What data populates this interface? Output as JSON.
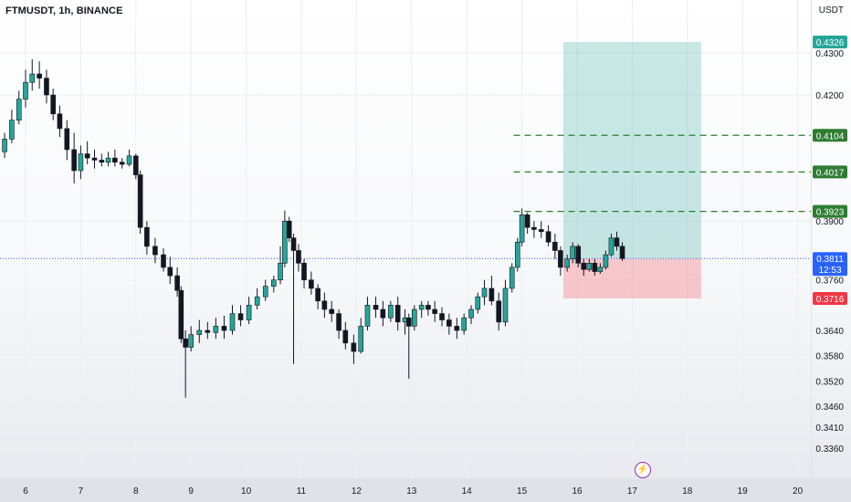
{
  "title": "FTMUSDT, 1h, BINANCE",
  "currency": "USDT",
  "event_icon": "lightning-bolt-icon",
  "chart_data": {
    "type": "candlestick",
    "symbol": "FTMUSDT",
    "interval": "1h",
    "exchange": "BINANCE",
    "ylim": [
      0.335,
      0.4365
    ],
    "xlim": [
      5.6,
      20.5
    ],
    "y_ticks": [
      "0.4300",
      "0.4200",
      "0.3900",
      "0.3760",
      "0.3640",
      "0.3580",
      "0.3520",
      "0.3460",
      "0.3410",
      "0.3360"
    ],
    "x_ticks": [
      "6",
      "7",
      "8",
      "9",
      "10",
      "11",
      "12",
      "13",
      "14",
      "15",
      "16",
      "17",
      "18",
      "19",
      "20"
    ],
    "ohlc": [
      [
        5.62,
        0.4065,
        0.411,
        0.405,
        0.4095
      ],
      [
        5.75,
        0.4095,
        0.4165,
        0.4085,
        0.414
      ],
      [
        5.88,
        0.414,
        0.421,
        0.413,
        0.419
      ],
      [
        6.0,
        0.419,
        0.426,
        0.417,
        0.423
      ],
      [
        6.12,
        0.423,
        0.4285,
        0.421,
        0.425
      ],
      [
        6.25,
        0.425,
        0.428,
        0.4215,
        0.424
      ],
      [
        6.38,
        0.424,
        0.426,
        0.418,
        0.42
      ],
      [
        6.5,
        0.42,
        0.4215,
        0.414,
        0.4155
      ],
      [
        6.62,
        0.4155,
        0.4175,
        0.41,
        0.412
      ],
      [
        6.75,
        0.412,
        0.414,
        0.4045,
        0.407
      ],
      [
        6.88,
        0.407,
        0.411,
        0.399,
        0.402
      ],
      [
        7.0,
        0.402,
        0.408,
        0.4,
        0.406
      ],
      [
        7.12,
        0.406,
        0.409,
        0.4035,
        0.405
      ],
      [
        7.25,
        0.405,
        0.407,
        0.4025,
        0.4045
      ],
      [
        7.38,
        0.4045,
        0.406,
        0.403,
        0.404
      ],
      [
        7.5,
        0.404,
        0.4065,
        0.403,
        0.405
      ],
      [
        7.62,
        0.405,
        0.407,
        0.403,
        0.404
      ],
      [
        7.75,
        0.404,
        0.405,
        0.4025,
        0.4035
      ],
      [
        7.88,
        0.4035,
        0.407,
        0.403,
        0.4055
      ],
      [
        8.0,
        0.4055,
        0.406,
        0.4,
        0.401
      ],
      [
        8.08,
        0.401,
        0.402,
        0.387,
        0.3885
      ],
      [
        8.2,
        0.3885,
        0.39,
        0.382,
        0.384
      ],
      [
        8.35,
        0.384,
        0.386,
        0.38,
        0.382
      ],
      [
        8.5,
        0.382,
        0.3835,
        0.378,
        0.379
      ],
      [
        8.62,
        0.379,
        0.3815,
        0.375,
        0.377
      ],
      [
        8.75,
        0.377,
        0.379,
        0.372,
        0.3735
      ],
      [
        8.82,
        0.3735,
        0.3745,
        0.361,
        0.362
      ],
      [
        8.9,
        0.362,
        0.364,
        0.348,
        0.36
      ],
      [
        9.0,
        0.36,
        0.365,
        0.359,
        0.363
      ],
      [
        9.15,
        0.363,
        0.3665,
        0.361,
        0.364
      ],
      [
        9.3,
        0.364,
        0.366,
        0.362,
        0.3635
      ],
      [
        9.45,
        0.3635,
        0.367,
        0.362,
        0.365
      ],
      [
        9.6,
        0.365,
        0.3675,
        0.362,
        0.364
      ],
      [
        9.75,
        0.364,
        0.37,
        0.363,
        0.368
      ],
      [
        9.9,
        0.368,
        0.37,
        0.365,
        0.3665
      ],
      [
        10.05,
        0.3665,
        0.372,
        0.3655,
        0.37
      ],
      [
        10.2,
        0.37,
        0.374,
        0.369,
        0.372
      ],
      [
        10.35,
        0.372,
        0.376,
        0.371,
        0.3745
      ],
      [
        10.5,
        0.3745,
        0.377,
        0.373,
        0.376
      ],
      [
        10.62,
        0.376,
        0.384,
        0.375,
        0.38
      ],
      [
        10.7,
        0.38,
        0.3925,
        0.379,
        0.39
      ],
      [
        10.78,
        0.39,
        0.391,
        0.385,
        0.386
      ],
      [
        10.86,
        0.386,
        0.387,
        0.356,
        0.383
      ],
      [
        10.95,
        0.383,
        0.3845,
        0.378,
        0.38
      ],
      [
        11.05,
        0.38,
        0.381,
        0.374,
        0.376
      ],
      [
        11.18,
        0.376,
        0.378,
        0.3725,
        0.374
      ],
      [
        11.3,
        0.374,
        0.375,
        0.369,
        0.371
      ],
      [
        11.42,
        0.371,
        0.373,
        0.367,
        0.369
      ],
      [
        11.55,
        0.369,
        0.371,
        0.366,
        0.368
      ],
      [
        11.68,
        0.368,
        0.369,
        0.362,
        0.364
      ],
      [
        11.8,
        0.364,
        0.366,
        0.3595,
        0.361
      ],
      [
        11.95,
        0.361,
        0.363,
        0.356,
        0.359
      ],
      [
        12.08,
        0.359,
        0.367,
        0.3585,
        0.365
      ],
      [
        12.2,
        0.365,
        0.372,
        0.364,
        0.37
      ],
      [
        12.35,
        0.37,
        0.372,
        0.367,
        0.369
      ],
      [
        12.48,
        0.369,
        0.371,
        0.365,
        0.367
      ],
      [
        12.62,
        0.367,
        0.371,
        0.366,
        0.37
      ],
      [
        12.75,
        0.37,
        0.372,
        0.364,
        0.366
      ],
      [
        12.88,
        0.366,
        0.369,
        0.363,
        0.367
      ],
      [
        12.95,
        0.367,
        0.368,
        0.3525,
        0.365
      ],
      [
        13.05,
        0.365,
        0.37,
        0.364,
        0.369
      ],
      [
        13.18,
        0.369,
        0.371,
        0.367,
        0.37
      ],
      [
        13.3,
        0.37,
        0.371,
        0.3675,
        0.369
      ],
      [
        13.42,
        0.369,
        0.371,
        0.366,
        0.368
      ],
      [
        13.55,
        0.368,
        0.3695,
        0.365,
        0.3665
      ],
      [
        13.68,
        0.3665,
        0.368,
        0.363,
        0.365
      ],
      [
        13.82,
        0.365,
        0.367,
        0.362,
        0.364
      ],
      [
        13.95,
        0.364,
        0.368,
        0.363,
        0.367
      ],
      [
        14.08,
        0.367,
        0.37,
        0.3655,
        0.369
      ],
      [
        14.2,
        0.369,
        0.373,
        0.368,
        0.372
      ],
      [
        14.32,
        0.372,
        0.376,
        0.37,
        0.374
      ],
      [
        14.45,
        0.374,
        0.377,
        0.37,
        0.371
      ],
      [
        14.58,
        0.371,
        0.373,
        0.364,
        0.366
      ],
      [
        14.7,
        0.366,
        0.376,
        0.365,
        0.374
      ],
      [
        14.82,
        0.374,
        0.38,
        0.373,
        0.379
      ],
      [
        14.92,
        0.379,
        0.386,
        0.378,
        0.385
      ],
      [
        15.0,
        0.385,
        0.393,
        0.384,
        0.3915
      ],
      [
        15.1,
        0.3915,
        0.392,
        0.387,
        0.3885
      ],
      [
        15.22,
        0.3885,
        0.39,
        0.386,
        0.388
      ],
      [
        15.35,
        0.388,
        0.39,
        0.386,
        0.3875
      ],
      [
        15.48,
        0.3875,
        0.389,
        0.384,
        0.385
      ],
      [
        15.6,
        0.385,
        0.387,
        0.381,
        0.383
      ],
      [
        15.7,
        0.383,
        0.384,
        0.377,
        0.379
      ],
      [
        15.82,
        0.379,
        0.382,
        0.378,
        0.381
      ],
      [
        15.92,
        0.381,
        0.385,
        0.38,
        0.384
      ],
      [
        16.02,
        0.384,
        0.3845,
        0.379,
        0.38
      ],
      [
        16.12,
        0.38,
        0.381,
        0.377,
        0.3785
      ],
      [
        16.22,
        0.3785,
        0.381,
        0.378,
        0.38
      ],
      [
        16.32,
        0.38,
        0.381,
        0.377,
        0.378
      ],
      [
        16.42,
        0.378,
        0.38,
        0.3775,
        0.379
      ],
      [
        16.52,
        0.379,
        0.383,
        0.3785,
        0.382
      ],
      [
        16.62,
        0.382,
        0.387,
        0.3815,
        0.386
      ],
      [
        16.72,
        0.386,
        0.3875,
        0.383,
        0.384
      ],
      [
        16.82,
        0.384,
        0.385,
        0.3805,
        0.3811
      ]
    ],
    "position": {
      "type": "long",
      "entry": 0.3811,
      "target": 0.4326,
      "stop": 0.3716,
      "x_start": 15.75,
      "x_end": 18.25
    },
    "levels": [
      {
        "label": "0.4326",
        "value": 0.4326,
        "style": "target",
        "color": "#26a69a"
      },
      {
        "label": "0.4104",
        "value": 0.4104,
        "style": "dashed",
        "color": "#2e7d32"
      },
      {
        "label": "0.4017",
        "value": 0.4017,
        "style": "dashed",
        "color": "#2e7d32"
      },
      {
        "label": "0.3923",
        "value": 0.3923,
        "style": "dashed",
        "color": "#2e7d32"
      },
      {
        "label": "0.3811",
        "value": 0.3811,
        "style": "current",
        "color": "#2962ff"
      },
      {
        "label": "0.3716",
        "value": 0.3716,
        "style": "stop",
        "color": "#f23645"
      }
    ],
    "countdown": "12:53",
    "dashed_line_x_start": 14.85,
    "colors": {
      "up": "#26a69a",
      "down": "#131722",
      "body_up": "#26a69a",
      "body_down": "#131722"
    },
    "grid": true
  }
}
